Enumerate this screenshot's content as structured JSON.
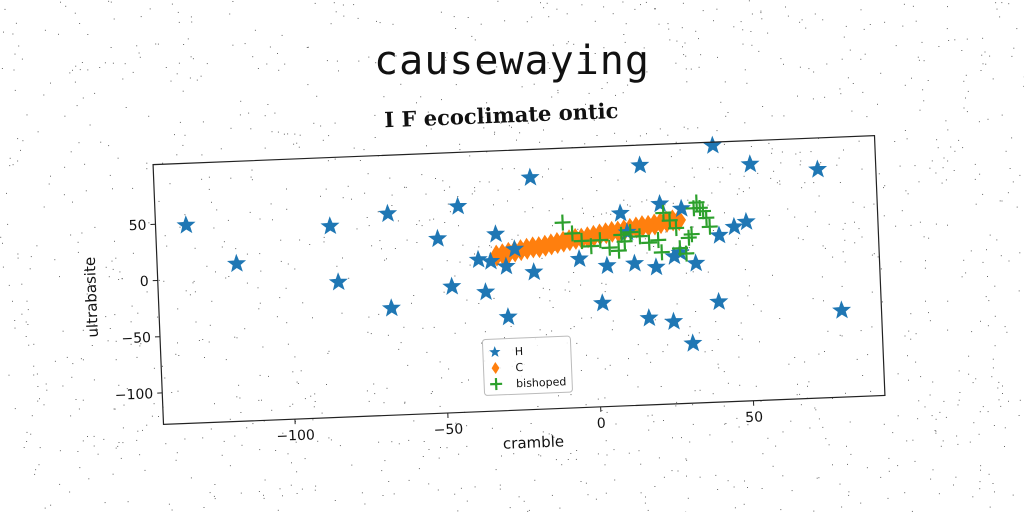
{
  "page_title": "causewaying",
  "chart_data": {
    "type": "scatter",
    "title": "I F ecoclimate ontic",
    "xlabel": "cramble",
    "ylabel": "ultrabasite",
    "xlim": [
      -143,
      93
    ],
    "ylim": [
      -128,
      103
    ],
    "xticks": [
      -100,
      -50,
      0,
      50
    ],
    "yticks": [
      50,
      0,
      -50,
      -100
    ],
    "legend_placement": "lower-center",
    "series": [
      {
        "name": "H",
        "marker": "star",
        "color": "#1f77b4",
        "x": [
          -133,
          -117,
          -86,
          -84,
          -67,
          -67,
          -51,
          -47,
          -44,
          -38,
          -36,
          -34,
          -32,
          -29,
          -29,
          -26,
          -20,
          -20,
          -5,
          2,
          4,
          9,
          11,
          13,
          16,
          17,
          20,
          22,
          25,
          26,
          28,
          29,
          31,
          33,
          40,
          40,
          41,
          46,
          50,
          52,
          74,
          80
        ],
        "y": [
          48,
          12,
          42,
          -8,
          51,
          -33,
          27,
          -16,
          55,
          7,
          -22,
          5,
          29,
          -45,
          0,
          15,
          78,
          -6,
          4,
          -36,
          -3,
          43,
          26,
          -2,
          85,
          -51,
          -6,
          50,
          -55,
          3,
          6,
          45,
          -75,
          -4,
          100,
          -39,
          20,
          27,
          31,
          82,
          75,
          -51
        ]
      },
      {
        "name": "C",
        "marker": "diamond",
        "color": "#ff7f0e",
        "x": [
          -32,
          -30,
          -28,
          -26,
          -24,
          -22,
          -20,
          -18,
          -16,
          -14,
          -12,
          -10,
          -8,
          -6,
          -4,
          -2,
          0,
          2,
          4,
          6,
          8,
          10,
          12,
          14,
          16,
          18,
          20,
          22,
          24,
          26,
          28
        ],
        "y": [
          10,
          11,
          12,
          13,
          14,
          15,
          16,
          16,
          17,
          18,
          19,
          20,
          21,
          22,
          22,
          23,
          24,
          25,
          26,
          27,
          27,
          28,
          29,
          30,
          31,
          31,
          32,
          33,
          34,
          35,
          35
        ]
      },
      {
        "name": "bishoped",
        "marker": "plus",
        "color": "#2ca02c",
        "x": [
          -10,
          -7,
          -4,
          -1,
          2,
          5,
          8,
          9,
          10,
          12,
          15,
          18,
          21,
          22,
          23,
          25,
          27,
          28,
          30,
          31,
          32,
          33,
          34,
          35,
          36,
          37,
          38
        ],
        "y": [
          37,
          27,
          20,
          15,
          20,
          13,
          10,
          24,
          18,
          26,
          22,
          16,
          18,
          7,
          42,
          35,
          28,
          10,
          5,
          19,
          22,
          45,
          50,
          45,
          42,
          36,
          28
        ]
      }
    ]
  }
}
